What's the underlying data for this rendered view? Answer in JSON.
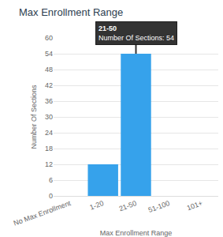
{
  "chart_data": {
    "type": "bar",
    "title": "Max Enrollment Range",
    "x_label": "Max Enrollment Range",
    "y_label": "Number Of Sections",
    "categories": [
      "No Max Enrollment",
      "1-20",
      "21-50",
      "51-100",
      "101+"
    ],
    "series": [
      {
        "name": "Number Of Sections",
        "color": "#36a2eb",
        "values": [
          0,
          12,
          54,
          0,
          0
        ]
      }
    ],
    "ylim": [
      0,
      60
    ],
    "yticks": [
      0,
      6,
      12,
      18,
      24,
      30,
      36,
      42,
      48,
      54,
      60
    ],
    "grid": true,
    "annotations": [
      {
        "category": "21-50",
        "value": 54,
        "title": "21-50",
        "text": "Number Of Sections: 54"
      }
    ]
  }
}
